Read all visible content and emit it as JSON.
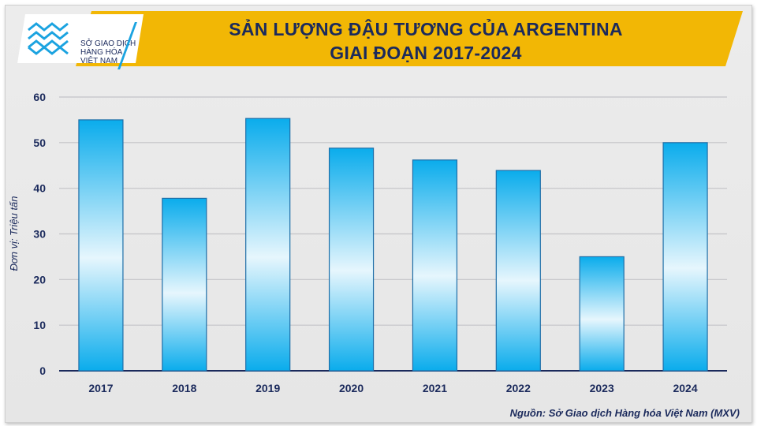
{
  "logo": {
    "lines": [
      "SỞ GIAO DỊCH",
      "HÀNG HÓA",
      "VIỆT NAM"
    ]
  },
  "source": "Nguồn: Sở Giao dịch Hàng hóa Việt Nam (MXV)",
  "colors": {
    "bar_top": "#0aacec",
    "bar_mid": "#e6f6fd",
    "axis": "#1b2a5c",
    "banner": "#f2b705",
    "title": "#1b2a5c"
  },
  "chart_data": {
    "type": "bar",
    "title": [
      "SẢN LƯỢNG ĐẬU TƯƠNG CỦA ARGENTINA",
      "GIAI ĐOẠN 2017-2024"
    ],
    "ylabel": "Đơn vị: Triệu tấn",
    "xlabel": "",
    "categories": [
      "2017",
      "2018",
      "2019",
      "2020",
      "2021",
      "2022",
      "2023",
      "2024"
    ],
    "values": [
      55.0,
      37.8,
      55.3,
      48.8,
      46.2,
      43.9,
      25.0,
      50.0
    ],
    "ylim": [
      0,
      60
    ],
    "yticks": [
      0,
      10,
      20,
      30,
      40,
      50,
      60
    ],
    "grid": true
  }
}
